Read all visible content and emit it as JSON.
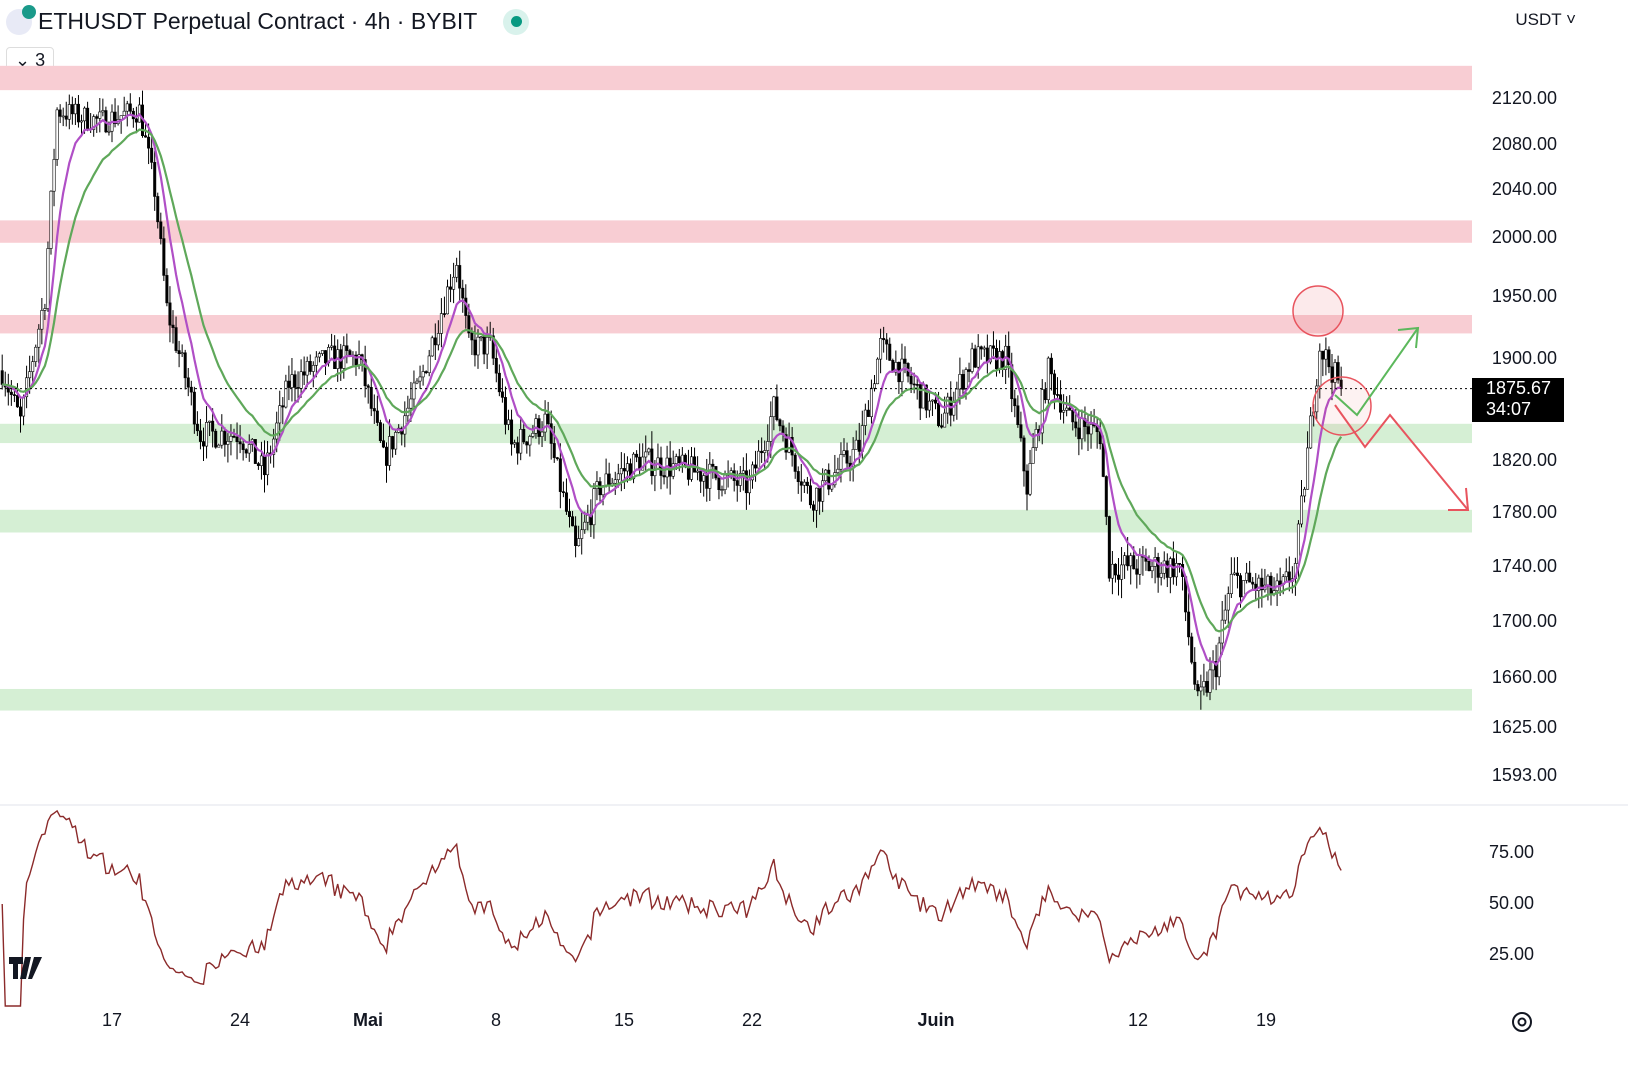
{
  "header": {
    "title": "ETHUSDT Perpetual Contract · 4h · BYBIT",
    "indicators_count": "3",
    "currency": "USDT"
  },
  "current_price": {
    "value": "1875.67",
    "countdown": "34:07"
  },
  "colors": {
    "up_candle": "#000000",
    "down_candle": "#000000",
    "ema_fast": "#b04fc6",
    "ema_slow": "#5fa85a",
    "resistance_zone": "#f8cdd3",
    "support_zone": "#d5efd4",
    "rsi": "#8b2a2a",
    "annotation_red": "#e8545e",
    "annotation_green": "#5cb85c"
  },
  "chart_data": [
    {
      "type": "candlestick",
      "scale": "log",
      "timeframe": "4h",
      "price_axis_ticks": [
        "2120.00",
        "2080.00",
        "2040.00",
        "2000.00",
        "1950.00",
        "1900.00",
        "1820.00",
        "1780.00",
        "1740.00",
        "1700.00",
        "1660.00",
        "1625.00",
        "1593.00"
      ],
      "time_axis_ticks": [
        "17",
        "24",
        "Mai",
        "8",
        "15",
        "22",
        "Juin",
        "12",
        "19"
      ],
      "close_path": [
        [
          "2023-04-11",
          1890
        ],
        [
          "2023-04-12",
          1850
        ],
        [
          "2023-04-13T08:00",
          1950
        ],
        [
          "2023-04-14",
          2110
        ],
        [
          "2023-04-16T08:00",
          2100
        ],
        [
          "2023-04-18T12:00",
          2110
        ],
        [
          "2023-04-19T08:00",
          2040
        ],
        [
          "2023-04-20",
          1940
        ],
        [
          "2023-04-21T20:00",
          1840
        ],
        [
          "2023-04-24",
          1840
        ],
        [
          "2023-04-25T08:00",
          1810
        ],
        [
          "2023-04-26T16:00",
          1880
        ],
        [
          "2023-04-28T20:00",
          1900
        ],
        [
          "2023-04-30T12:00",
          1900
        ],
        [
          "2023-05-01T20:00",
          1820
        ],
        [
          "2023-05-03T20:00",
          1880
        ],
        [
          "2023-05-05T20:00",
          1980
        ],
        [
          "2023-05-06T12:00",
          1910
        ],
        [
          "2023-05-07T16:00",
          1910
        ],
        [
          "2023-05-08T20:00",
          1830
        ],
        [
          "2023-05-10T16:00",
          1850
        ],
        [
          "2023-05-12T08:00",
          1750
        ],
        [
          "2023-05-13T16:00",
          1800
        ],
        [
          "2023-05-15T20:00",
          1820
        ],
        [
          "2023-05-19T04:00",
          1810
        ],
        [
          "2023-05-21T20:00",
          1800
        ],
        [
          "2023-05-23T04:00",
          1860
        ],
        [
          "2023-05-25T04:00",
          1790
        ],
        [
          "2023-05-27T20:00",
          1830
        ],
        [
          "2023-05-29",
          1910
        ],
        [
          "2023-06-01T08:00",
          1850
        ],
        [
          "2023-06-03",
          1900
        ],
        [
          "2023-06-04T20:00",
          1900
        ],
        [
          "2023-06-06",
          1800
        ],
        [
          "2023-06-07T04:00",
          1890
        ],
        [
          "2023-06-08T08:00",
          1850
        ],
        [
          "2023-06-10",
          1840
        ],
        [
          "2023-06-10T12:00",
          1740
        ],
        [
          "2023-06-14T08:00",
          1740
        ],
        [
          "2023-06-15T08:00",
          1640
        ],
        [
          "2023-06-16T08:00",
          1670
        ],
        [
          "2023-06-17T04:00",
          1730
        ],
        [
          "2023-06-19T20:00",
          1720
        ],
        [
          "2023-06-20T16:00",
          1740
        ],
        [
          "2023-06-22",
          1910
        ],
        [
          "2023-06-23T04:00",
          1876
        ]
      ],
      "zones": [
        {
          "kind": "resistance",
          "low": 2128,
          "high": 2150
        },
        {
          "kind": "resistance",
          "low": 1995,
          "high": 2014
        },
        {
          "kind": "resistance",
          "low": 1920,
          "high": 1935
        },
        {
          "kind": "support",
          "low": 1833,
          "high": 1848
        },
        {
          "kind": "support",
          "low": 1765,
          "high": 1782
        },
        {
          "kind": "support",
          "low": 1637,
          "high": 1652
        }
      ],
      "last_price": 1875.67
    },
    {
      "type": "line",
      "name": "RSI",
      "y_axis_ticks": [
        "75.00",
        "50.00",
        "25.00"
      ],
      "ylim": [
        25,
        75
      ]
    }
  ]
}
